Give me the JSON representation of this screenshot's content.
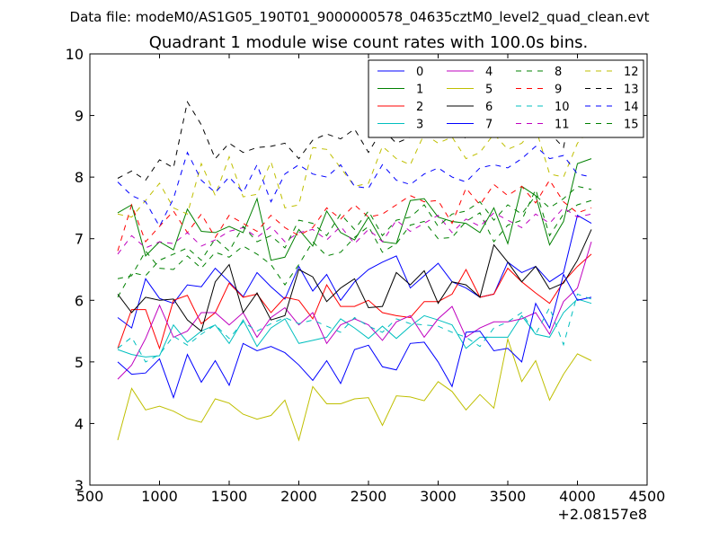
{
  "suptitle": "Data file: modeM0/AS1G05_190T01_9000000578_04635cztM0_level2_quad_clean.evt",
  "chart_data": {
    "type": "line",
    "title": "Quadrant 1 module wise count rates with 100.0s bins.",
    "xlabel": "",
    "ylabel": "",
    "x_offset_label": "+2.08157e8",
    "xlim": [
      500,
      4500
    ],
    "ylim": [
      3,
      10
    ],
    "xticks": [
      500,
      1000,
      1500,
      2000,
      2500,
      3000,
      3500,
      4000,
      4500
    ],
    "yticks": [
      3,
      4,
      5,
      6,
      7,
      8,
      9,
      10
    ],
    "legend_position": "top-right",
    "grid": false,
    "x": [
      700,
      800,
      900,
      1000,
      1100,
      1200,
      1300,
      1400,
      1500,
      1600,
      1700,
      1800,
      1900,
      2000,
      2100,
      2200,
      2300,
      2400,
      2500,
      2600,
      2700,
      2800,
      2900,
      3000,
      3100,
      3200,
      3300,
      3400,
      3500,
      3600,
      3700,
      3800,
      3900,
      4000,
      4100
    ],
    "series": [
      {
        "name": "0",
        "color": "#0000ff",
        "dash": "solid",
        "values": [
          5.72,
          5.55,
          6.35,
          6.03,
          5.95,
          6.25,
          6.22,
          6.52,
          6.3,
          6.06,
          6.45,
          6.22,
          6.02,
          6.55,
          6.15,
          6.42,
          6.0,
          6.3,
          6.5,
          6.62,
          6.72,
          6.2,
          6.4,
          6.6,
          6.3,
          6.2,
          6.05,
          6.1,
          6.62,
          6.45,
          6.55,
          6.3,
          6.45,
          7.38,
          7.25
        ]
      },
      {
        "name": "1",
        "color": "#008000",
        "dash": "solid",
        "values": [
          7.42,
          7.55,
          6.72,
          6.95,
          6.82,
          7.48,
          7.12,
          7.1,
          7.2,
          7.1,
          7.65,
          6.65,
          6.7,
          7.15,
          6.88,
          7.45,
          7.1,
          6.98,
          7.35,
          6.95,
          6.92,
          7.62,
          7.65,
          7.35,
          7.28,
          7.25,
          7.1,
          7.5,
          6.92,
          7.85,
          7.7,
          6.9,
          7.28,
          8.22,
          8.3
        ]
      },
      {
        "name": "2",
        "color": "#ff0000",
        "dash": "solid",
        "values": [
          5.22,
          5.85,
          5.85,
          5.22,
          6.0,
          6.08,
          5.62,
          5.8,
          6.28,
          6.05,
          6.1,
          5.8,
          6.05,
          6.0,
          5.7,
          6.25,
          5.9,
          5.9,
          6.0,
          5.8,
          5.75,
          5.72,
          5.98,
          5.98,
          6.1,
          6.5,
          6.05,
          6.1,
          6.52,
          6.3,
          6.12,
          5.95,
          6.3,
          6.55,
          6.75
        ]
      },
      {
        "name": "3",
        "color": "#00bfbf",
        "dash": "solid",
        "values": [
          5.2,
          5.12,
          5.08,
          5.1,
          5.6,
          5.32,
          5.5,
          5.6,
          5.3,
          5.68,
          5.25,
          5.55,
          5.7,
          5.3,
          5.35,
          5.4,
          5.7,
          5.55,
          5.38,
          5.58,
          5.38,
          5.58,
          5.75,
          5.68,
          5.6,
          5.22,
          5.4,
          5.4,
          5.4,
          5.75,
          5.45,
          5.4,
          5.8,
          6.02,
          5.95
        ]
      },
      {
        "name": "4",
        "color": "#bf00bf",
        "dash": "solid",
        "values": [
          4.72,
          4.95,
          5.38,
          5.92,
          5.4,
          5.5,
          5.8,
          5.8,
          5.6,
          5.8,
          5.4,
          5.72,
          5.88,
          5.6,
          5.8,
          5.3,
          5.6,
          5.7,
          5.6,
          5.35,
          5.65,
          5.75,
          5.4,
          5.7,
          5.9,
          5.4,
          5.55,
          5.65,
          5.65,
          5.7,
          5.8,
          5.45,
          5.98,
          6.2,
          6.95
        ]
      },
      {
        "name": "5",
        "color": "#bfbf00",
        "dash": "solid",
        "values": [
          3.73,
          4.57,
          4.22,
          4.28,
          4.2,
          4.08,
          4.02,
          4.4,
          4.33,
          4.15,
          4.07,
          4.13,
          4.38,
          3.73,
          4.6,
          4.32,
          4.32,
          4.4,
          4.42,
          3.97,
          4.45,
          4.43,
          4.37,
          4.68,
          4.52,
          4.22,
          4.47,
          4.25,
          5.37,
          4.68,
          5.02,
          4.38,
          4.8,
          5.13,
          5.02
        ]
      },
      {
        "name": "6",
        "color": "#000000",
        "dash": "solid",
        "values": [
          6.1,
          5.8,
          6.05,
          6.0,
          6.02,
          5.68,
          5.5,
          6.3,
          6.58,
          5.8,
          6.12,
          5.68,
          5.75,
          6.5,
          6.38,
          5.98,
          6.2,
          6.35,
          5.88,
          5.9,
          6.45,
          6.25,
          6.48,
          5.95,
          6.3,
          6.25,
          6.05,
          6.9,
          6.62,
          6.3,
          6.55,
          6.18,
          6.28,
          6.65,
          7.15
        ]
      },
      {
        "name": "7",
        "color": "#0000ff",
        "dash": "solid",
        "values": [
          5.0,
          4.8,
          4.82,
          5.05,
          4.42,
          5.12,
          4.67,
          5.02,
          4.62,
          5.3,
          5.18,
          5.25,
          5.15,
          4.95,
          4.7,
          5.02,
          4.65,
          5.2,
          5.27,
          4.92,
          4.87,
          5.3,
          5.32,
          5.0,
          4.6,
          5.48,
          5.5,
          5.18,
          5.22,
          5.0,
          5.95,
          5.55,
          6.42,
          6.0,
          6.05
        ]
      },
      {
        "name": "8",
        "color": "#008000",
        "dash": "dashed",
        "values": [
          6.35,
          6.4,
          6.8,
          6.52,
          6.5,
          6.72,
          6.52,
          6.78,
          6.7,
          6.88,
          6.75,
          6.58,
          6.25,
          6.58,
          6.95,
          6.72,
          6.78,
          7.02,
          7.2,
          6.78,
          6.92,
          7.22,
          7.28,
          7.0,
          7.02,
          7.28,
          7.42,
          6.95,
          7.22,
          7.3,
          7.8,
          7.05,
          7.4,
          7.55,
          7.62
        ]
      },
      {
        "name": "9",
        "color": "#ff0000",
        "dash": "dashed",
        "values": [
          6.8,
          7.55,
          6.95,
          7.2,
          7.45,
          7.1,
          7.4,
          7.02,
          7.38,
          7.25,
          7.12,
          7.38,
          7.18,
          7.05,
          7.18,
          7.5,
          7.32,
          7.55,
          7.35,
          7.4,
          7.55,
          7.7,
          7.6,
          7.62,
          7.25,
          7.82,
          7.55,
          7.88,
          7.7,
          7.85,
          7.58,
          7.95,
          7.6,
          7.42,
          7.5
        ]
      },
      {
        "name": "10",
        "color": "#00bfbf",
        "dash": "dashed",
        "values": [
          5.22,
          5.4,
          5.0,
          5.12,
          5.42,
          5.27,
          5.45,
          5.6,
          5.38,
          5.65,
          5.5,
          5.62,
          5.72,
          5.62,
          5.68,
          5.58,
          5.48,
          5.72,
          5.58,
          5.48,
          5.7,
          5.62,
          5.6,
          5.58,
          5.48,
          5.4,
          5.25,
          5.55,
          5.65,
          5.8,
          5.45,
          5.88,
          5.28,
          6.1,
          6.02
        ]
      },
      {
        "name": "11",
        "color": "#bf00bf",
        "dash": "dashed",
        "values": [
          6.75,
          7.05,
          6.85,
          6.95,
          6.92,
          7.1,
          6.88,
          6.98,
          7.12,
          7.18,
          7.02,
          7.2,
          6.95,
          7.1,
          7.15,
          6.98,
          7.2,
          6.92,
          7.15,
          6.95,
          7.3,
          7.12,
          7.25,
          7.38,
          7.1,
          7.32,
          7.2,
          7.42,
          7.3,
          7.18,
          7.4,
          7.25,
          7.5,
          7.35,
          7.4
        ]
      },
      {
        "name": "12",
        "color": "#bfbf00",
        "dash": "dashed",
        "values": [
          7.4,
          7.35,
          7.62,
          7.9,
          7.5,
          7.4,
          8.22,
          7.7,
          8.33,
          7.68,
          7.72,
          8.25,
          7.5,
          7.55,
          8.48,
          8.45,
          8.15,
          7.85,
          7.9,
          8.5,
          8.3,
          8.2,
          8.7,
          8.55,
          8.65,
          8.3,
          8.4,
          8.7,
          8.45,
          8.55,
          8.8,
          8.05,
          8.0,
          8.55,
          8.8
        ]
      },
      {
        "name": "13",
        "color": "#000000",
        "dash": "dashed",
        "values": [
          7.98,
          8.1,
          7.95,
          8.28,
          8.15,
          9.22,
          8.85,
          8.3,
          8.55,
          8.4,
          8.48,
          8.5,
          8.55,
          8.3,
          8.6,
          8.7,
          8.62,
          8.78,
          8.4,
          8.78,
          8.55,
          8.65,
          8.68,
          8.92,
          8.88,
          8.62,
          8.8,
          8.92,
          8.75,
          8.68,
          8.9,
          8.72,
          8.48,
          9.6,
          9.55
        ]
      },
      {
        "name": "14",
        "color": "#0000ff",
        "dash": "dashed",
        "values": [
          7.92,
          7.7,
          7.6,
          7.2,
          7.65,
          8.4,
          7.95,
          7.75,
          8.0,
          7.75,
          8.2,
          7.6,
          8.05,
          8.2,
          8.05,
          8.0,
          8.2,
          7.85,
          7.82,
          8.2,
          7.95,
          7.88,
          8.05,
          8.15,
          8.0,
          7.92,
          8.15,
          8.2,
          8.15,
          8.3,
          8.5,
          8.3,
          8.35,
          8.05,
          8.0
        ]
      },
      {
        "name": "15",
        "color": "#008000",
        "dash": "dashed",
        "values": [
          6.05,
          6.45,
          6.4,
          6.65,
          6.75,
          6.85,
          6.65,
          7.0,
          6.8,
          7.2,
          6.95,
          7.05,
          6.85,
          7.3,
          7.25,
          7.05,
          7.4,
          7.15,
          7.45,
          7.05,
          7.3,
          7.35,
          7.55,
          7.2,
          7.4,
          7.45,
          7.6,
          7.3,
          7.55,
          7.4,
          7.7,
          7.5,
          7.65,
          7.85,
          7.8
        ]
      }
    ]
  }
}
